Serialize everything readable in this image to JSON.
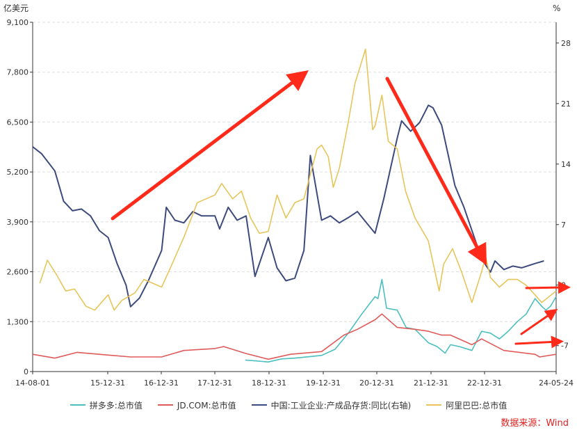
{
  "chart_data": {
    "type": "line",
    "left_unit": "亿美元",
    "right_unit": "%",
    "x_ticks": [
      "14-08-01",
      "15-12-31",
      "16-12-31",
      "17-12-31",
      "18-12-31",
      "19-12-31",
      "20-12-31",
      "21-12-31",
      "22-12-31",
      "24-05-24"
    ],
    "y_left": {
      "ticks": [
        "0",
        "1,300",
        "2,600",
        "3,900",
        "5,200",
        "6,500",
        "7,800",
        "9,100"
      ],
      "range": [
        0,
        9100
      ]
    },
    "y_right": {
      "ticks": [
        "-7",
        "0",
        "7",
        "14",
        "21",
        "28"
      ],
      "range": [
        -10,
        30.4
      ]
    },
    "grid": true,
    "legend_position": "bottom",
    "x_range": [
      "2014-08-01",
      "2024-05-24"
    ],
    "series": [
      {
        "name": "拼多多:总市值",
        "axis": "left",
        "color": "#4bbfbf",
        "points": [
          [
            "2018-07-26",
            300
          ],
          [
            "2018-10-01",
            280
          ],
          [
            "2018-12-31",
            250
          ],
          [
            "2019-04-01",
            330
          ],
          [
            "2019-07-01",
            350
          ],
          [
            "2019-12-31",
            420
          ],
          [
            "2020-04-01",
            580
          ],
          [
            "2020-07-01",
            1000
          ],
          [
            "2020-10-01",
            1500
          ],
          [
            "2020-12-31",
            1950
          ],
          [
            "2021-01-20",
            1900
          ],
          [
            "2021-02-16",
            2400
          ],
          [
            "2021-03-20",
            1650
          ],
          [
            "2021-06-01",
            1600
          ],
          [
            "2021-08-01",
            1150
          ],
          [
            "2021-10-01",
            1100
          ],
          [
            "2021-12-31",
            750
          ],
          [
            "2022-03-01",
            650
          ],
          [
            "2022-04-25",
            480
          ],
          [
            "2022-06-01",
            700
          ],
          [
            "2022-08-01",
            650
          ],
          [
            "2022-10-25",
            550
          ],
          [
            "2022-12-31",
            1050
          ],
          [
            "2023-03-01",
            1000
          ],
          [
            "2023-05-01",
            850
          ],
          [
            "2023-07-01",
            1050
          ],
          [
            "2023-09-01",
            1300
          ],
          [
            "2023-11-01",
            1500
          ],
          [
            "2024-01-01",
            1900
          ],
          [
            "2024-02-15",
            1700
          ],
          [
            "2024-03-15",
            1600
          ],
          [
            "2024-04-15",
            1700
          ],
          [
            "2024-05-24",
            1950
          ]
        ]
      },
      {
        "name": "JD.COM:总市值",
        "axis": "left",
        "color": "#e05a5a",
        "points": [
          [
            "2014-08-01",
            450
          ],
          [
            "2014-12-31",
            350
          ],
          [
            "2015-06-01",
            500
          ],
          [
            "2015-12-31",
            430
          ],
          [
            "2016-06-01",
            380
          ],
          [
            "2016-12-31",
            380
          ],
          [
            "2017-06-01",
            550
          ],
          [
            "2017-12-31",
            600
          ],
          [
            "2018-03-01",
            650
          ],
          [
            "2018-08-01",
            470
          ],
          [
            "2018-12-31",
            320
          ],
          [
            "2019-06-01",
            450
          ],
          [
            "2019-12-31",
            520
          ],
          [
            "2020-06-01",
            950
          ],
          [
            "2020-09-01",
            1100
          ],
          [
            "2020-12-31",
            1350
          ],
          [
            "2021-02-16",
            1500
          ],
          [
            "2021-06-01",
            1150
          ],
          [
            "2021-10-01",
            1100
          ],
          [
            "2021-12-31",
            1050
          ],
          [
            "2022-04-01",
            950
          ],
          [
            "2022-06-01",
            950
          ],
          [
            "2022-10-25",
            700
          ],
          [
            "2022-12-31",
            850
          ],
          [
            "2023-06-01",
            550
          ],
          [
            "2023-12-31",
            450
          ],
          [
            "2024-02-01",
            380
          ],
          [
            "2024-05-24",
            450
          ]
        ]
      },
      {
        "name": "中国:工业企业:产成品存货:同比(右轴)",
        "axis": "right",
        "color": "#3d4a7c",
        "points": [
          [
            "2014-08-01",
            16
          ],
          [
            "2014-10-01",
            15.2
          ],
          [
            "2014-12-31",
            13.2
          ],
          [
            "2015-03-01",
            9.7
          ],
          [
            "2015-05-01",
            8.6
          ],
          [
            "2015-07-01",
            8.8
          ],
          [
            "2015-09-01",
            8
          ],
          [
            "2015-11-01",
            6.3
          ],
          [
            "2015-12-31",
            5.5
          ],
          [
            "2016-03-01",
            2.5
          ],
          [
            "2016-05-01",
            0
          ],
          [
            "2016-06-01",
            -2.5
          ],
          [
            "2016-08-01",
            -1.5
          ],
          [
            "2016-10-01",
            0.5
          ],
          [
            "2016-12-31",
            4
          ],
          [
            "2017-02-01",
            9
          ],
          [
            "2017-04-01",
            7.5
          ],
          [
            "2017-06-01",
            7.2
          ],
          [
            "2017-08-01",
            8.5
          ],
          [
            "2017-10-01",
            8
          ],
          [
            "2017-12-31",
            8
          ],
          [
            "2018-02-01",
            6.5
          ],
          [
            "2018-04-01",
            9
          ],
          [
            "2018-06-01",
            7.5
          ],
          [
            "2018-08-01",
            8
          ],
          [
            "2018-10-01",
            1
          ],
          [
            "2018-12-31",
            5.5
          ],
          [
            "2019-03-01",
            2
          ],
          [
            "2019-05-01",
            0.5
          ],
          [
            "2019-07-01",
            0.8
          ],
          [
            "2019-09-01",
            4
          ],
          [
            "2019-10-15",
            15
          ],
          [
            "2019-12-31",
            7.5
          ],
          [
            "2020-03-01",
            8
          ],
          [
            "2020-05-01",
            7.2
          ],
          [
            "2020-07-01",
            7.8
          ],
          [
            "2020-09-01",
            8.5
          ],
          [
            "2020-12-31",
            6
          ],
          [
            "2021-03-01",
            10
          ],
          [
            "2021-06-01",
            17
          ],
          [
            "2021-07-01",
            19
          ],
          [
            "2021-09-01",
            17.8
          ],
          [
            "2021-11-01",
            18.8
          ],
          [
            "2021-12-31",
            20.8
          ],
          [
            "2022-02-01",
            20.5
          ],
          [
            "2022-04-01",
            18.5
          ],
          [
            "2022-07-01",
            11.5
          ],
          [
            "2022-09-01",
            9
          ],
          [
            "2022-11-01",
            6
          ],
          [
            "2023-01-01",
            3
          ],
          [
            "2023-03-01",
            1.5
          ],
          [
            "2023-04-01",
            2.8
          ],
          [
            "2023-06-01",
            1.8
          ],
          [
            "2023-08-01",
            2.2
          ],
          [
            "2023-10-01",
            2
          ],
          [
            "2024-01-01",
            2.5
          ],
          [
            "2024-03-01",
            2.8
          ]
        ]
      },
      {
        "name": "阿里巴巴:总市值",
        "axis": "left",
        "color": "#e6c55a",
        "points": [
          [
            "2014-09-19",
            2300
          ],
          [
            "2014-11-10",
            2900
          ],
          [
            "2015-01-15",
            2500
          ],
          [
            "2015-03-15",
            2100
          ],
          [
            "2015-05-15",
            2150
          ],
          [
            "2015-08-01",
            1700
          ],
          [
            "2015-09-30",
            1600
          ],
          [
            "2015-12-31",
            2000
          ],
          [
            "2016-02-10",
            1600
          ],
          [
            "2016-04-01",
            1850
          ],
          [
            "2016-07-01",
            2050
          ],
          [
            "2016-09-01",
            2400
          ],
          [
            "2016-12-31",
            2200
          ],
          [
            "2017-03-01",
            2700
          ],
          [
            "2017-06-01",
            3500
          ],
          [
            "2017-09-01",
            4400
          ],
          [
            "2017-12-31",
            4600
          ],
          [
            "2018-02-15",
            4900
          ],
          [
            "2018-05-01",
            4500
          ],
          [
            "2018-07-01",
            4700
          ],
          [
            "2018-09-01",
            4000
          ],
          [
            "2018-10-31",
            3600
          ],
          [
            "2018-12-31",
            3650
          ],
          [
            "2019-03-01",
            4600
          ],
          [
            "2019-05-01",
            4000
          ],
          [
            "2019-07-01",
            4400
          ],
          [
            "2019-09-01",
            4500
          ],
          [
            "2019-11-30",
            5800
          ],
          [
            "2019-12-31",
            5900
          ],
          [
            "2020-02-15",
            5600
          ],
          [
            "2020-03-20",
            4800
          ],
          [
            "2020-05-01",
            5300
          ],
          [
            "2020-07-01",
            6500
          ],
          [
            "2020-08-15",
            7500
          ],
          [
            "2020-10-27",
            8400
          ],
          [
            "2020-12-15",
            6300
          ],
          [
            "2020-12-31",
            6400
          ],
          [
            "2021-02-16",
            7200
          ],
          [
            "2021-04-01",
            6000
          ],
          [
            "2021-06-01",
            5800
          ],
          [
            "2021-07-28",
            4700
          ],
          [
            "2021-10-01",
            4000
          ],
          [
            "2021-12-31",
            3400
          ],
          [
            "2022-03-15",
            2100
          ],
          [
            "2022-04-15",
            2800
          ],
          [
            "2022-06-15",
            3200
          ],
          [
            "2022-08-15",
            2600
          ],
          [
            "2022-10-25",
            1800
          ],
          [
            "2022-12-31",
            2600
          ],
          [
            "2023-01-27",
            3000
          ],
          [
            "2023-03-01",
            2450
          ],
          [
            "2023-05-01",
            2200
          ],
          [
            "2023-07-01",
            2400
          ],
          [
            "2023-09-01",
            2400
          ],
          [
            "2023-11-01",
            2250
          ],
          [
            "2023-12-31",
            2000
          ],
          [
            "2024-02-15",
            1800
          ],
          [
            "2024-05-24",
            2100
          ]
        ]
      }
    ]
  },
  "legend": [
    {
      "label": "拼多多:总市值",
      "color": "#4bbfbf"
    },
    {
      "label": "JD.COM:总市值",
      "color": "#e05a5a"
    },
    {
      "label": "中国:工业企业:产成品存货:同比(右轴)",
      "color": "#3d4a7c"
    },
    {
      "label": "阿里巴巴:总市值",
      "color": "#e6c55a"
    }
  ],
  "source_label": "数据来源：Wind",
  "colors": {
    "annotation_arrow": "#ff2a1a",
    "grid": "#dddddd",
    "axis": "#333333"
  }
}
